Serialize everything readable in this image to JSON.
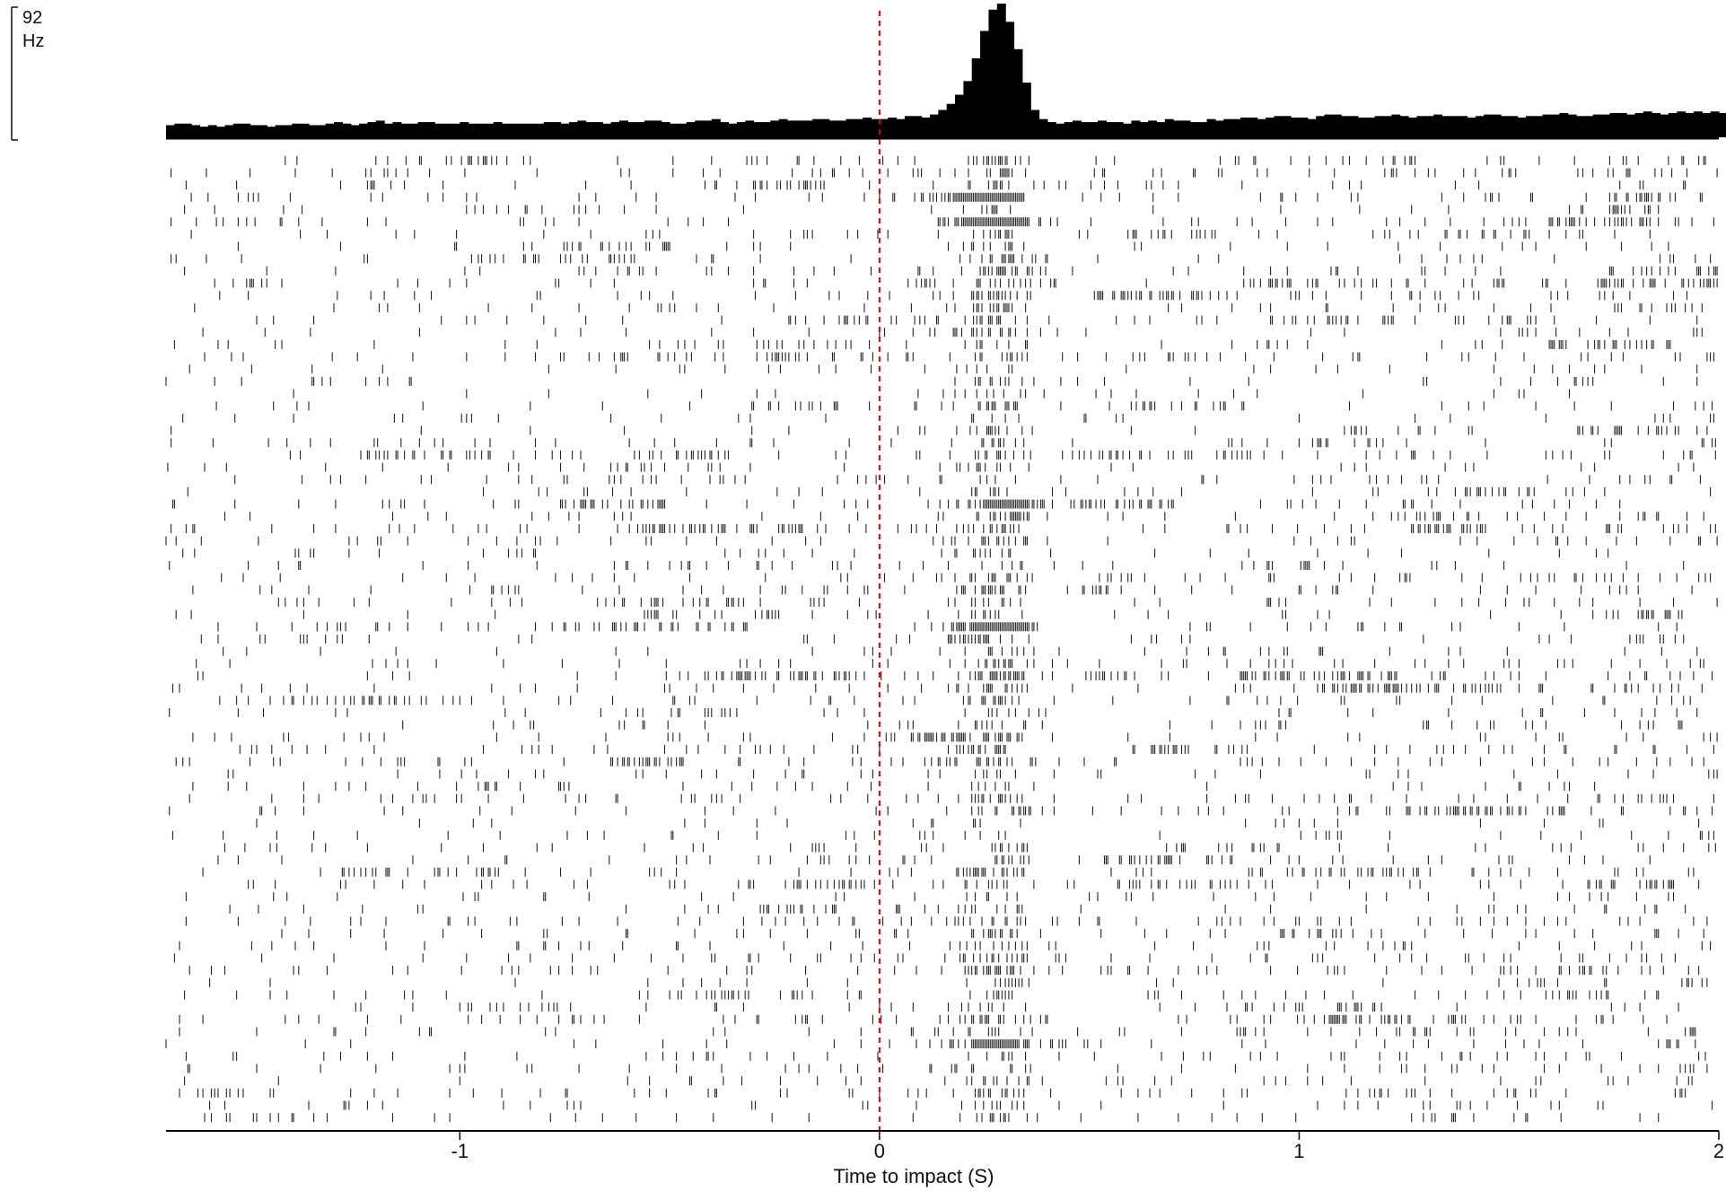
{
  "chart_data": {
    "type": "raster_psth",
    "xlabel": "Time to impact (S)",
    "xlim": [
      -1.7,
      2.0
    ],
    "xticks": [
      -1,
      0,
      1,
      2
    ],
    "xtick_labels": [
      "-1",
      "0",
      "1",
      "2"
    ],
    "event_line": {
      "x": 0,
      "color": "#e00000",
      "style": "dashed"
    },
    "psth": {
      "scale_value": "92",
      "scale_unit": "Hz",
      "bin_width": 0.02,
      "bin_start": -1.7,
      "rates": [
        8,
        9,
        9,
        8,
        7,
        8,
        7,
        8,
        9,
        9,
        8,
        8,
        7,
        8,
        8,
        9,
        9,
        8,
        8,
        9,
        10,
        9,
        8,
        9,
        10,
        11,
        9,
        10,
        9,
        9,
        10,
        10,
        9,
        9,
        9,
        10,
        9,
        9,
        9,
        10,
        9,
        9,
        9,
        9,
        9,
        10,
        10,
        9,
        10,
        11,
        10,
        10,
        9,
        10,
        11,
        10,
        10,
        11,
        11,
        10,
        9,
        9,
        10,
        11,
        11,
        12,
        10,
        9,
        10,
        11,
        10,
        10,
        11,
        12,
        11,
        11,
        11,
        12,
        12,
        11,
        11,
        12,
        12,
        13,
        12,
        12,
        13,
        12,
        14,
        14,
        13,
        15,
        18,
        22,
        28,
        37,
        52,
        70,
        84,
        88,
        76,
        58,
        36,
        18,
        12,
        10,
        9,
        10,
        11,
        10,
        10,
        11,
        10,
        10,
        9,
        11,
        10,
        11,
        10,
        12,
        11,
        11,
        10,
        10,
        12,
        11,
        12,
        12,
        13,
        13,
        12,
        13,
        14,
        14,
        13,
        13,
        12,
        14,
        15,
        15,
        14,
        14,
        13,
        13,
        14,
        14,
        15,
        14,
        13,
        14,
        14,
        15,
        14,
        14,
        14,
        13,
        14,
        15,
        15,
        14,
        14,
        13,
        14,
        14,
        15,
        15,
        16,
        15,
        14,
        14,
        15,
        15,
        16,
        16,
        15,
        16,
        17,
        16,
        15,
        16,
        17,
        16,
        17,
        16,
        17,
        16,
        15,
        17,
        16,
        17,
        16,
        15,
        16,
        17,
        16,
        16
      ]
    },
    "raster": {
      "trial_count": 79,
      "seed": 1923
    }
  }
}
